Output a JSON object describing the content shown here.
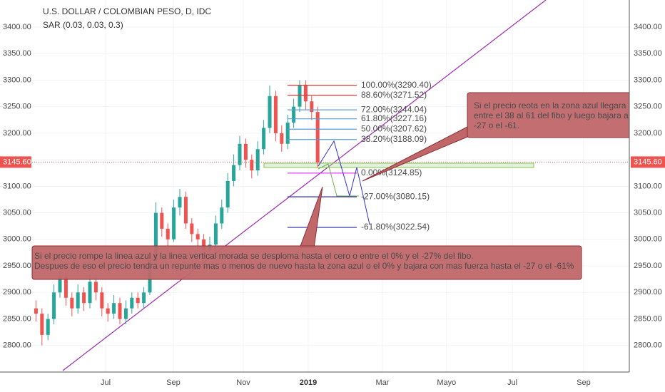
{
  "chart_data": {
    "type": "candlestick",
    "title": "U.S. DOLLAR / COLOMBIAN PESO, D, IDC",
    "indicator": "SAR (0.03, 0.03, 0.3)",
    "x": [
      24,
      28,
      32,
      36,
      40,
      44,
      48,
      52,
      56,
      60,
      64,
      68,
      72,
      76,
      80,
      84,
      88,
      92,
      96,
      100,
      104,
      108,
      112,
      116,
      120,
      124,
      128,
      132,
      136,
      140,
      144,
      148,
      152,
      156,
      160,
      164,
      168,
      172,
      176,
      180,
      184,
      188,
      192,
      196,
      200,
      204,
      208,
      212
    ],
    "open": [
      2870,
      2860,
      2820,
      2850,
      2900,
      2930,
      2890,
      2870,
      2900,
      2880,
      2920,
      2900,
      2870,
      2860,
      2880,
      2850,
      2870,
      2890,
      2880,
      2900,
      2960,
      3050,
      3020,
      3000,
      3060,
      3080,
      3030,
      3010,
      3000,
      2980,
      2990,
      3030,
      3060,
      3110,
      3140,
      3180,
      3150,
      3130,
      3170,
      3210,
      3270,
      3200,
      3180,
      3220,
      3250,
      3290,
      3260,
      3240
    ],
    "high": [
      2885,
      2870,
      2860,
      2915,
      2945,
      2940,
      2900,
      2915,
      2910,
      2935,
      2930,
      2910,
      2880,
      2895,
      2890,
      2885,
      2900,
      2900,
      2910,
      2975,
      3070,
      3060,
      3030,
      3075,
      3095,
      3090,
      3040,
      3020,
      3010,
      3005,
      3045,
      3075,
      3125,
      3160,
      3195,
      3190,
      3160,
      3185,
      3225,
      3290,
      3280,
      3215,
      3235,
      3265,
      3300,
      3300,
      3270,
      3250
    ],
    "low": [
      2845,
      2800,
      2810,
      2840,
      2890,
      2875,
      2855,
      2860,
      2865,
      2870,
      2885,
      2855,
      2845,
      2850,
      2840,
      2840,
      2860,
      2870,
      2870,
      2895,
      2950,
      3005,
      2985,
      2995,
      3045,
      3020,
      2995,
      2985,
      2965,
      2970,
      2980,
      3020,
      3050,
      3100,
      3130,
      3135,
      3115,
      3120,
      3160,
      3200,
      3185,
      3165,
      3170,
      3210,
      3240,
      3245,
      3225,
      3135
    ],
    "close": [
      2860,
      2820,
      2850,
      2900,
      2930,
      2890,
      2870,
      2900,
      2880,
      2920,
      2900,
      2870,
      2860,
      2880,
      2850,
      2870,
      2890,
      2880,
      2900,
      2960,
      3050,
      3020,
      3000,
      3060,
      3080,
      3030,
      3010,
      3000,
      2980,
      2990,
      3030,
      3060,
      3110,
      3140,
      3180,
      3150,
      3130,
      3170,
      3210,
      3270,
      3200,
      3180,
      3220,
      3250,
      3290,
      3260,
      3240,
      3145
    ],
    "up_color": "#26a69a",
    "down_color": "#ef5350",
    "xlim": [
      0,
      420
    ],
    "xticks": [
      {
        "value": 70.5,
        "label": "Jul"
      },
      {
        "value": 115.7,
        "label": "Sep"
      },
      {
        "value": 162.4,
        "label": "Nov"
      },
      {
        "value": 205.7,
        "label": "2019"
      },
      {
        "value": 255.2,
        "label": "Mar"
      },
      {
        "value": 298,
        "label": "Mayo"
      },
      {
        "value": 341.9,
        "label": "Jul"
      },
      {
        "value": 389.5,
        "label": "Sep"
      }
    ],
    "ylim": [
      2750,
      3451
    ],
    "yticks": [
      {
        "value": 2800,
        "label": "2800.00"
      },
      {
        "value": 2850,
        "label": "2850.00"
      },
      {
        "value": 2900,
        "label": "2900.00"
      },
      {
        "value": 2950,
        "label": "2950.00"
      },
      {
        "value": 3000,
        "label": "3000.00"
      },
      {
        "value": 3050,
        "label": "3050.00"
      },
      {
        "value": 3100,
        "label": "3100.00"
      },
      {
        "value": 3150,
        "label": "3150.00"
      },
      {
        "value": 3200,
        "label": "3200.00"
      },
      {
        "value": 3250,
        "label": "3250.00"
      },
      {
        "value": 3300,
        "label": "3300.00"
      },
      {
        "value": 3350,
        "label": "3350.00"
      },
      {
        "value": 3400,
        "label": "3400.00"
      }
    ],
    "last_price": {
      "value": 3145.6,
      "label": "3145.60"
    },
    "fib_levels": [
      {
        "value": 3290.4,
        "label": "100.00%(3290.40)",
        "color": "#e53935"
      },
      {
        "value": 3271.52,
        "label": "88.60%(3271.52)",
        "color": "#e53935"
      },
      {
        "value": 3244.04,
        "label": "72.00%(3244.04)",
        "color": "#5b9bd5"
      },
      {
        "value": 3227.16,
        "label": "61.80%(3227.16)",
        "color": "#5b9bd5"
      },
      {
        "value": 3207.62,
        "label": "50.00%(3207.62)",
        "color": "#5b9bd5"
      },
      {
        "value": 3188.09,
        "label": "38.20%(3188.09)",
        "color": "#5b9bd5"
      },
      {
        "value": 3124.85,
        "label": "0.00%(3124.85)",
        "color": "#e040fb"
      },
      {
        "value": 3080.15,
        "label": "-27.00%(3080.15)",
        "color": "#2a2aa8"
      },
      {
        "value": 3022.54,
        "label": "-61.80%(3022.54)",
        "color": "#2a2aa8"
      }
    ],
    "note_right": [
      "Si el precio reota en la zona azul llegara a",
      "entre el 38 al 61 del fibo y luego bajara a",
      "-27 o el -61."
    ],
    "note_bottom": [
      "Si el precio rompe la linea azul y la linea vertical morada se desploma hasta el cero o entre el 0% y el -27% del fibo.",
      "Despues de eso el precio tendra un repunte mas o menos de nuevo hasta la zona azul o el 0% y bajara con mas fuerza hasta el -27 o el -61%"
    ]
  }
}
